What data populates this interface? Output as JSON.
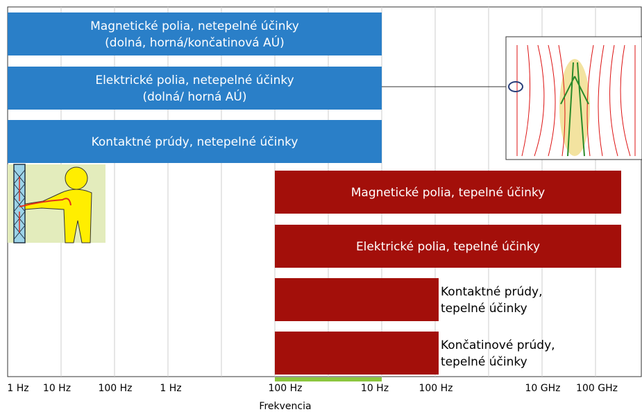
{
  "bars": [
    {
      "lines": [
        "Magnetické polia, netepelné účinky",
        "(dolná, horná/končatinová AÚ)"
      ]
    },
    {
      "lines": [
        "Elektrické polia, netepelné účinky",
        "(dolná/ horná AÚ)"
      ]
    },
    {
      "lines": [
        "Kontaktné prúdy, netepelné účinky"
      ]
    },
    {
      "lines": [
        "Magnetické polia, tepelné účinky"
      ]
    },
    {
      "lines": [
        "Elektrické polia, tepelné účinky"
      ]
    },
    {
      "lines": [
        "Kontaktné prúdy,",
        "tepelné účinky"
      ]
    },
    {
      "lines": [
        "Končatinové prúdy,",
        "tepelné účinky"
      ]
    }
  ],
  "tick_labels": [
    "1 Hz",
    "10 Hz",
    "100 Hz",
    "1 Hz",
    "100 Hz",
    "10 Hz",
    "100 Hz",
    "10 GHz",
    "100 GHz"
  ],
  "axis_title": "Frekvencia"
}
